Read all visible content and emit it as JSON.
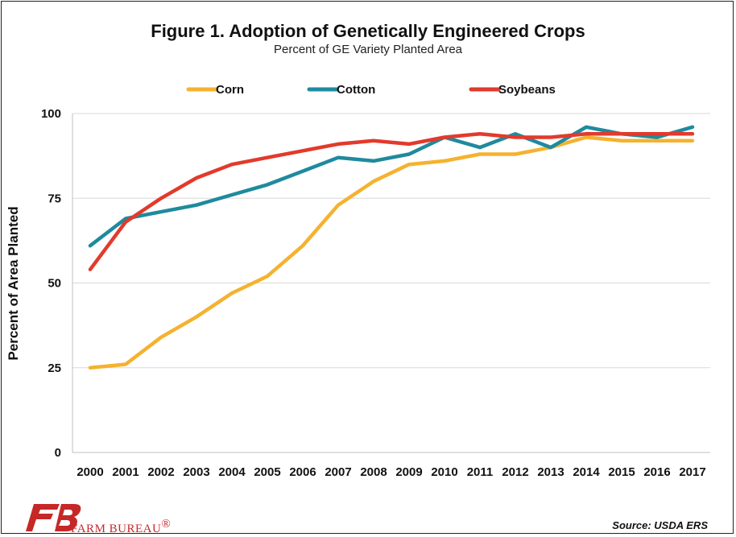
{
  "chart_data": {
    "type": "line",
    "title": "Figure 1. Adoption of Genetically Engineered Crops",
    "subtitle": "Percent of GE Variety Planted Area",
    "xlabel": "",
    "ylabel": "Percent of Area Planted",
    "ylim": [
      0,
      100
    ],
    "yticks": [
      "0",
      "25",
      "50",
      "75",
      "100"
    ],
    "grid": true,
    "legend_position": "top",
    "categories": [
      "2000",
      "2001",
      "2002",
      "2003",
      "2004",
      "2005",
      "2006",
      "2007",
      "2008",
      "2009",
      "2010",
      "2011",
      "2012",
      "2013",
      "2014",
      "2015",
      "2016",
      "2017"
    ],
    "series": [
      {
        "name": "Corn",
        "color": "#f5b22f",
        "values": [
          25,
          26,
          34,
          40,
          47,
          52,
          61,
          73,
          80,
          85,
          86,
          88,
          88,
          90,
          93,
          92,
          92,
          92
        ]
      },
      {
        "name": "Cotton",
        "color": "#1f8a9e",
        "values": [
          61,
          69,
          71,
          73,
          76,
          79,
          83,
          87,
          86,
          88,
          93,
          90,
          94,
          90,
          96,
          94,
          93,
          96
        ]
      },
      {
        "name": "Soybeans",
        "color": "#e23a2c",
        "values": [
          54,
          68,
          75,
          81,
          85,
          87,
          89,
          91,
          92,
          91,
          93,
          94,
          93,
          93,
          94,
          94,
          94,
          94
        ]
      }
    ]
  },
  "footer": {
    "brand": "FARM BUREAU",
    "brand_mark": "®",
    "source": "Source: USDA ERS",
    "logo_color": "#c62828"
  }
}
